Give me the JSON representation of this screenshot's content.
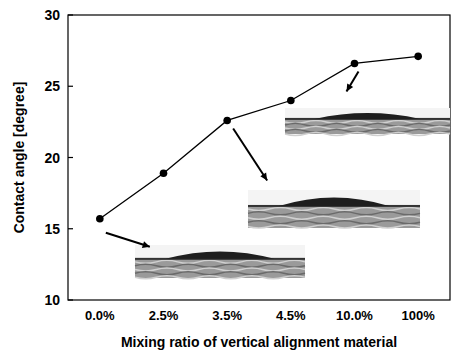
{
  "chart_data": {
    "type": "line",
    "x_label": "Mixing ratio of vertical alignment material",
    "y_label": "Contact angle [degree]",
    "categories": [
      "0.0%",
      "2.5%",
      "3.5%",
      "4.5%",
      "10.0%",
      "100%"
    ],
    "values": [
      15.7,
      18.9,
      22.6,
      24.0,
      26.6,
      27.1
    ],
    "color": "#000000",
    "marker": "circle",
    "ylim": [
      10,
      30
    ],
    "yticks": [
      10,
      15,
      20,
      25,
      30
    ],
    "grid": false
  }
}
